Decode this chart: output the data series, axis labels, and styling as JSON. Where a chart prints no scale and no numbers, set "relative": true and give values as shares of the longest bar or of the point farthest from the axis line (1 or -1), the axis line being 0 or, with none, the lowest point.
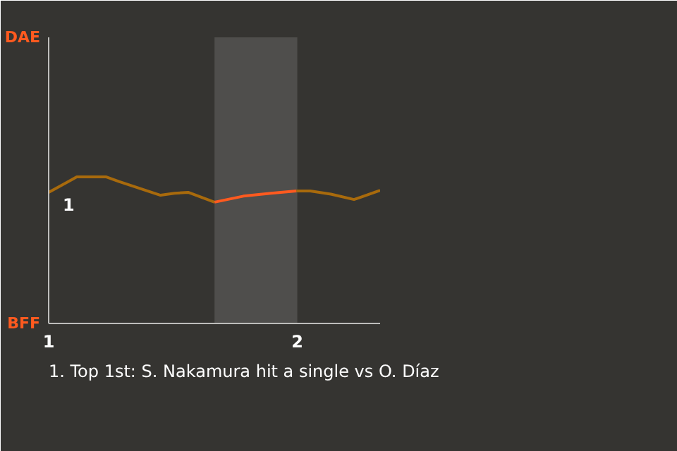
{
  "chart_data": {
    "type": "line",
    "relative": true,
    "xlim": [
      1,
      2.333
    ],
    "xticks": [
      1,
      2
    ],
    "grid": false,
    "marker": "none",
    "line_style": "solid",
    "series": [
      {
        "color": "#a86a0c",
        "x": [
          1,
          1.113,
          1.232,
          1.283,
          1.45,
          1.506,
          1.561,
          1.667,
          1.8,
          1.996,
          2.052,
          2.135,
          2.228,
          2.333
        ],
        "values": [
          0.895,
          1,
          1,
          0.969,
          0.875,
          0.889,
          0.895,
          0.828,
          null,
          0.904,
          0.904,
          0.883,
          0.846,
          0.908
        ]
      },
      {
        "color": "#ff5a1f",
        "x": [
          1.667,
          1.783,
          1.894,
          1.996
        ],
        "values": [
          0.828,
          0.869,
          0.889,
          0.904
        ]
      }
    ],
    "bands": [
      {
        "axis": "x",
        "from": 1.667,
        "to": 2,
        "color": "#4f4e4c"
      }
    ],
    "annotations": [
      "DAE",
      "BFF",
      {
        "text": "1",
        "x": 1,
        "y": 0.895
      },
      "1. Top 1st: S. Nakamura hit a single vs O. Díaz"
    ]
  }
}
